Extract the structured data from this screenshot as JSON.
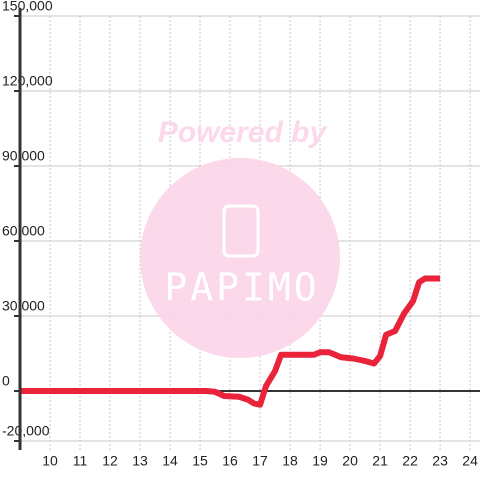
{
  "chart_data": {
    "type": "line",
    "watermark": {
      "top": "Powered by",
      "logo": "PAPIMO"
    },
    "x": [
      9,
      15.2,
      15.5,
      15.8,
      16.3,
      16.6,
      16.8,
      17.0,
      17.2,
      17.5,
      17.7,
      18.2,
      18.8,
      19.0,
      19.3,
      19.7,
      20.1,
      20.5,
      20.8,
      21.0,
      21.2,
      21.5,
      21.8,
      22.1,
      22.3,
      22.5,
      22.7,
      23.0
    ],
    "series": [
      {
        "color": "#e8233a",
        "values": [
          0,
          0,
          -300,
          -2000,
          -2300,
          -3500,
          -5000,
          -5500,
          2000,
          8000,
          14500,
          14500,
          14500,
          15500,
          15500,
          13500,
          13000,
          12000,
          11000,
          14000,
          22500,
          24000,
          31000,
          36000,
          43500,
          45000,
          45000,
          45000
        ]
      }
    ],
    "xlim": [
      9,
      24.33
    ],
    "xticks": [
      10,
      11,
      12,
      13,
      14,
      15,
      16,
      17,
      18,
      19,
      20,
      21,
      22,
      23,
      24
    ],
    "ylim": [
      -20000,
      150000
    ],
    "yticks": [
      {
        "value": -20000,
        "label": "-20,000"
      },
      0,
      {
        "value": 30000,
        "label": "30,000"
      },
      {
        "value": 60000,
        "label": "60,000"
      },
      {
        "value": 90000,
        "label": "90,000"
      },
      {
        "value": 120000,
        "label": "120,000"
      },
      {
        "value": 150000,
        "label": "150,000"
      }
    ],
    "grid": true
  }
}
